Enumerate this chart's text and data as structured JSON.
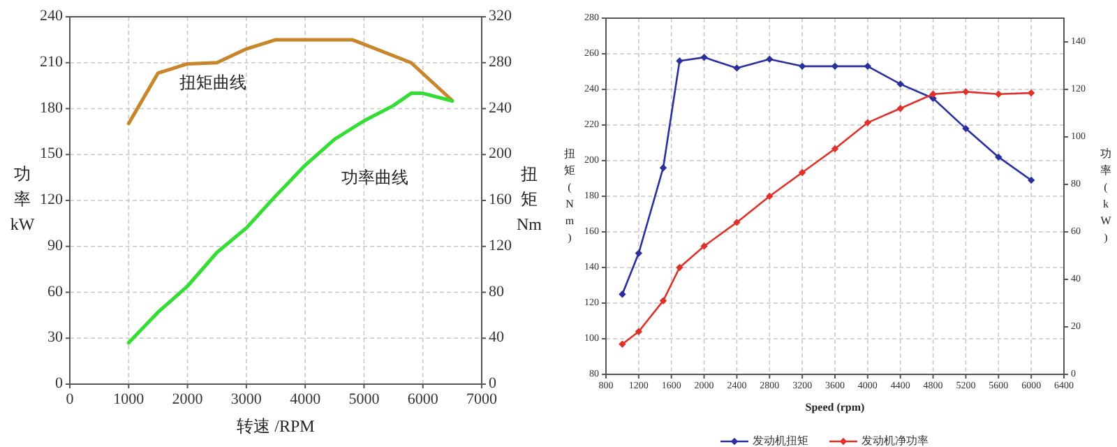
{
  "chart_data": [
    {
      "type": "line",
      "xlabel": "转速  /RPM",
      "ylabel": "功率 kW",
      "y2label": "扭矩 Nm",
      "xlim": [
        0,
        7000
      ],
      "xticks": [
        0,
        1000,
        2000,
        3000,
        4000,
        5000,
        6000,
        7000
      ],
      "ylim": [
        0,
        240
      ],
      "yticks": [
        0,
        30,
        60,
        90,
        120,
        150,
        180,
        210,
        240
      ],
      "y2lim": [
        0,
        320
      ],
      "y2ticks": [
        0,
        40,
        80,
        120,
        160,
        200,
        240,
        280,
        320
      ],
      "grid": true,
      "legend": false,
      "marker": "none",
      "series": [
        {
          "color": "#c8862a",
          "axis": "y2",
          "x": [
            1000,
            1500,
            2000,
            2500,
            3000,
            3500,
            4800,
            5000,
            5800,
            6500
          ],
          "values": [
            227,
            271,
            279,
            280,
            292,
            300,
            300,
            296,
            280,
            247
          ]
        },
        {
          "color": "#33dd33",
          "x": [
            1000,
            1500,
            2000,
            2500,
            3000,
            3500,
            4000,
            4500,
            5000,
            5500,
            5800,
            6000,
            6500
          ],
          "values": [
            27,
            47,
            64,
            86,
            102,
            123,
            143,
            160,
            172,
            182,
            190,
            190,
            185
          ]
        }
      ],
      "annotations": [
        "扭矩曲线",
        "功率曲线"
      ]
    },
    {
      "type": "line",
      "xlabel": "Speed (rpm)",
      "ylabel": "扭矩(Nm)",
      "y2label": "功率(kW)",
      "xlim": [
        800,
        6400
      ],
      "xticks": [
        800,
        1200,
        1600,
        2000,
        2400,
        2800,
        3200,
        3600,
        4000,
        4400,
        4800,
        5200,
        5600,
        6000,
        6400
      ],
      "ylim": [
        80,
        280
      ],
      "yticks": [
        80,
        100,
        120,
        140,
        160,
        180,
        200,
        220,
        240,
        260,
        280
      ],
      "y2lim": [
        0,
        150
      ],
      "y2ticks": [
        0,
        20,
        40,
        60,
        80,
        100,
        120,
        140
      ],
      "grid": true,
      "legend": "bottom",
      "marker": "diamond",
      "x": [
        1000,
        1200,
        1500,
        1700,
        2000,
        2400,
        2800,
        3200,
        3600,
        4000,
        4400,
        4800,
        5200,
        5600,
        6000
      ],
      "series": [
        {
          "name": "发动机扭矩",
          "color": "#2b2f9e",
          "values": [
            125,
            148,
            196,
            256,
            258,
            252,
            257,
            253,
            253,
            253,
            243,
            235,
            218,
            202,
            189
          ]
        },
        {
          "name": "发动机净功率",
          "color": "#e0302a",
          "axis": "y2",
          "values": [
            12.7,
            18,
            31,
            45,
            54,
            64,
            75,
            85,
            95,
            106,
            112,
            118,
            119,
            118,
            118.5
          ]
        }
      ]
    }
  ]
}
